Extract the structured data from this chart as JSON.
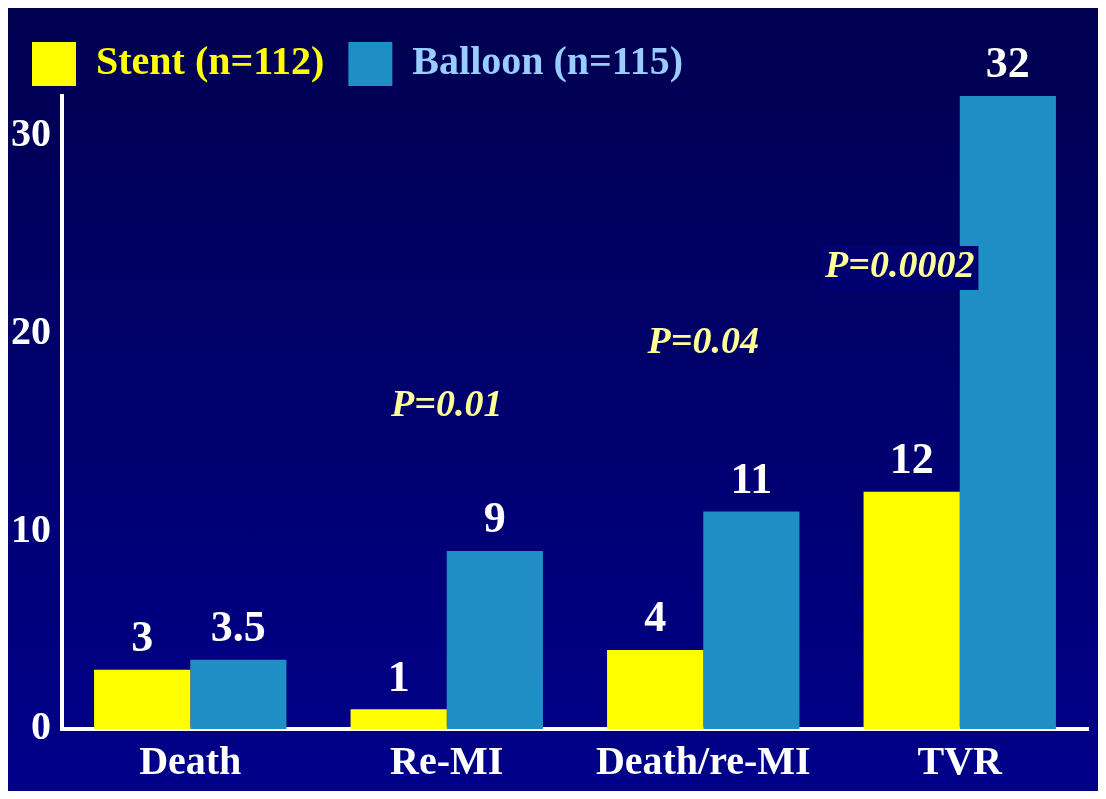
{
  "chart_data": {
    "type": "bar",
    "categories": [
      "Death",
      "Re-MI",
      "Death/re-MI",
      "TVR"
    ],
    "series": [
      {
        "name": "Stent (n=112)",
        "color": "#ffff00",
        "values": [
          3,
          1,
          4,
          12
        ]
      },
      {
        "name": "Balloon (n=115)",
        "color": "#1f8ec4",
        "values": [
          3.5,
          9,
          11,
          32
        ]
      }
    ],
    "ylim": [
      0,
      32
    ],
    "yticks": [
      0,
      10,
      20,
      30
    ],
    "data_labels": true,
    "legend": "top left",
    "grid": false,
    "annotations": [
      "P=0.01",
      "P=0.04",
      "P=0.0002"
    ]
  }
}
